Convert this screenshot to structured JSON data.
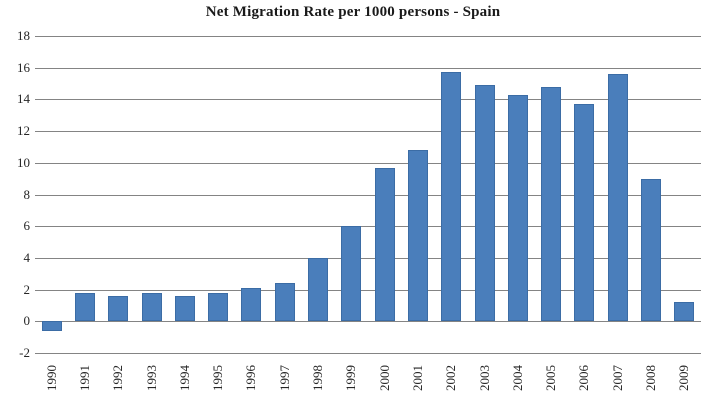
{
  "chart_data": {
    "type": "bar",
    "title": "Net Migration Rate per 1000 persons - Spain",
    "categories": [
      "1990",
      "1991",
      "1992",
      "1993",
      "1994",
      "1995",
      "1996",
      "1997",
      "1998",
      "1999",
      "2000",
      "2001",
      "2002",
      "2003",
      "2004",
      "2005",
      "2006",
      "2007",
      "2008",
      "2009"
    ],
    "values": [
      -0.6,
      1.8,
      1.6,
      1.8,
      1.6,
      1.8,
      2.1,
      2.4,
      4.0,
      6.0,
      9.7,
      10.8,
      15.7,
      14.9,
      14.3,
      14.8,
      13.7,
      15.6,
      9.0,
      1.2
    ],
    "xlabel": "",
    "ylabel": "",
    "ylim": [
      -2,
      18
    ],
    "yticks": [
      18,
      16,
      14,
      12,
      10,
      8,
      6,
      4,
      2,
      0,
      -2
    ],
    "grid": true,
    "legend": false,
    "colors": {
      "bar": "#4A7EBB",
      "bar_border": "#3B6CA5",
      "gridline": "#848484",
      "text": "#262626",
      "background": "#FFFFFF"
    }
  }
}
